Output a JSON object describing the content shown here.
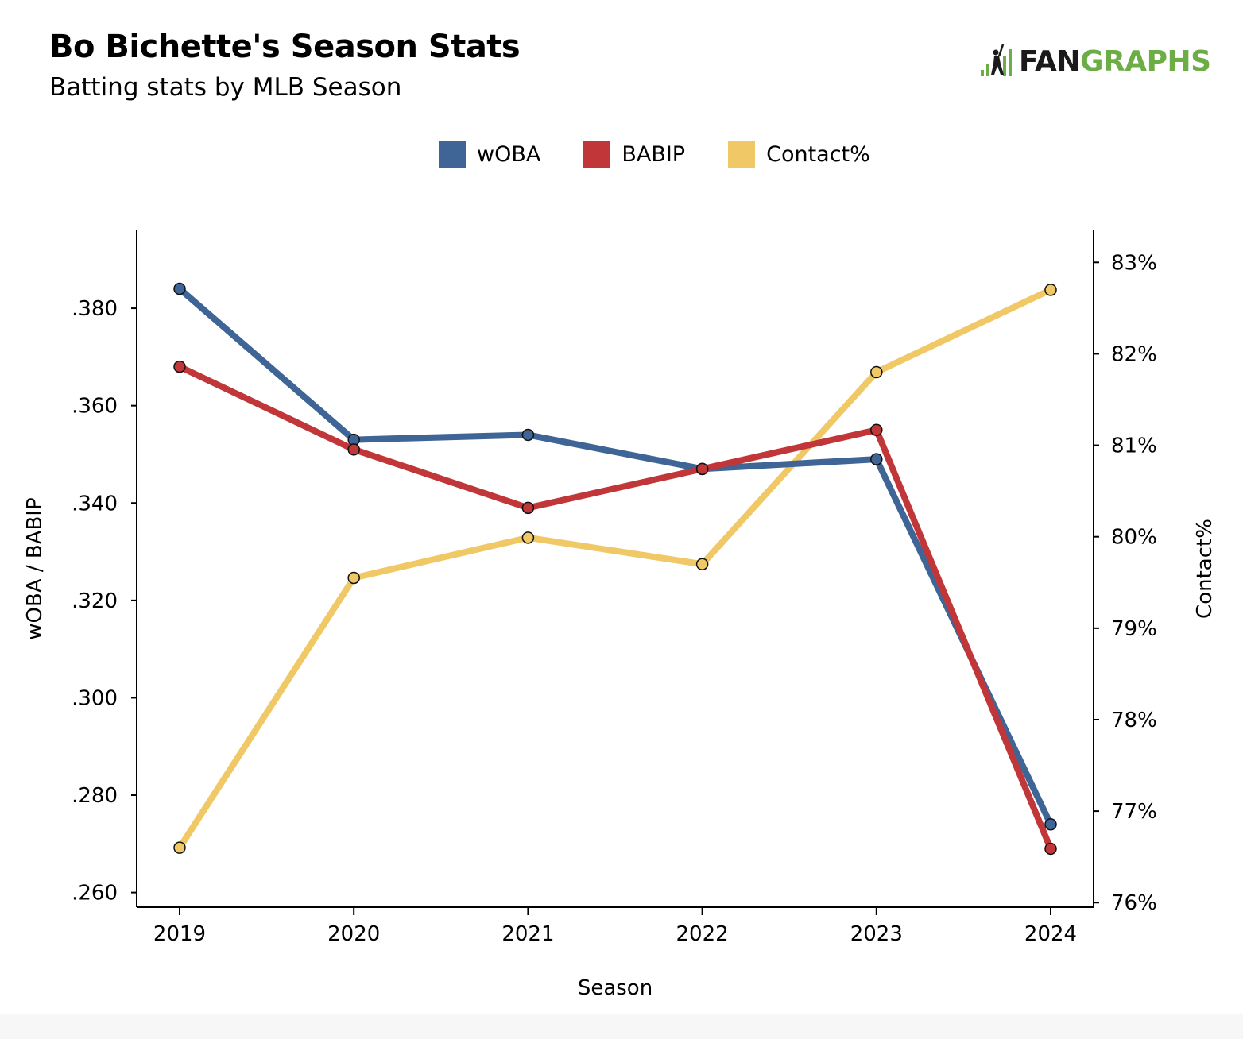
{
  "header": {
    "title": "Bo Bichette's Season Stats",
    "subtitle": "Batting stats by MLB Season"
  },
  "logo": {
    "fan": "FAN",
    "graphs": "GRAPHS",
    "icon": "fangraphs-batter-logo-icon"
  },
  "colors": {
    "woba": "#3f6496",
    "babip": "#c13638",
    "contact": "#f0c865",
    "marker_stroke": "#111111"
  },
  "chart_data": {
    "type": "line",
    "xlabel": "Season",
    "ylabel_left": "wOBA / BABIP",
    "ylabel_right": "Contact%",
    "categories": [
      "2019",
      "2020",
      "2021",
      "2022",
      "2023",
      "2024"
    ],
    "ylim_left": [
      0.257,
      0.396
    ],
    "ylim_right": [
      75.95,
      83.35
    ],
    "yticks_left": [
      ".260",
      ".280",
      ".300",
      ".320",
      ".340",
      ".360",
      ".380"
    ],
    "yticks_right": [
      "76%",
      "77%",
      "78%",
      "79%",
      "80%",
      "81%",
      "82%",
      "83%"
    ],
    "legend_position": "top-center",
    "grid": false,
    "series": [
      {
        "name": "wOBA",
        "axis": "left",
        "values": [
          0.384,
          0.353,
          0.354,
          0.347,
          0.349,
          0.274
        ]
      },
      {
        "name": "BABIP",
        "axis": "left",
        "values": [
          0.368,
          0.351,
          0.339,
          0.347,
          0.355,
          0.269
        ]
      },
      {
        "name": "Contact%",
        "axis": "right",
        "values": [
          76.6,
          79.55,
          79.99,
          79.7,
          81.8,
          82.7
        ]
      }
    ]
  }
}
